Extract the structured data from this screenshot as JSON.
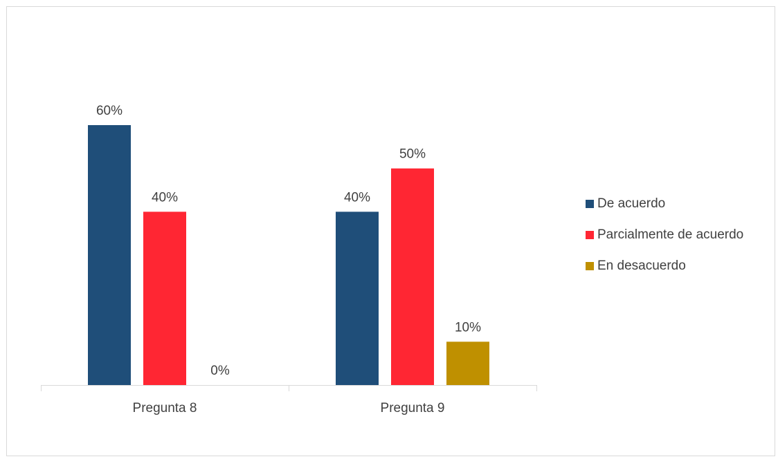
{
  "chart_data": {
    "type": "bar",
    "categories": [
      "Pregunta 8",
      "Pregunta 9"
    ],
    "series": [
      {
        "name": "De acuerdo",
        "values": [
          60,
          40
        ],
        "color": "#1f4e79"
      },
      {
        "name": "Parcialmente de acuerdo",
        "values": [
          40,
          50
        ],
        "color": "#ff2633"
      },
      {
        "name": "En desacuerdo",
        "values": [
          0,
          10
        ],
        "color": "#bf9000"
      }
    ],
    "data_labels": [
      [
        "60%",
        "40%"
      ],
      [
        "40%",
        "50%"
      ],
      [
        "0%",
        "10%"
      ]
    ],
    "ylim": [
      0,
      60
    ],
    "grid": false,
    "legend_position": "right"
  }
}
